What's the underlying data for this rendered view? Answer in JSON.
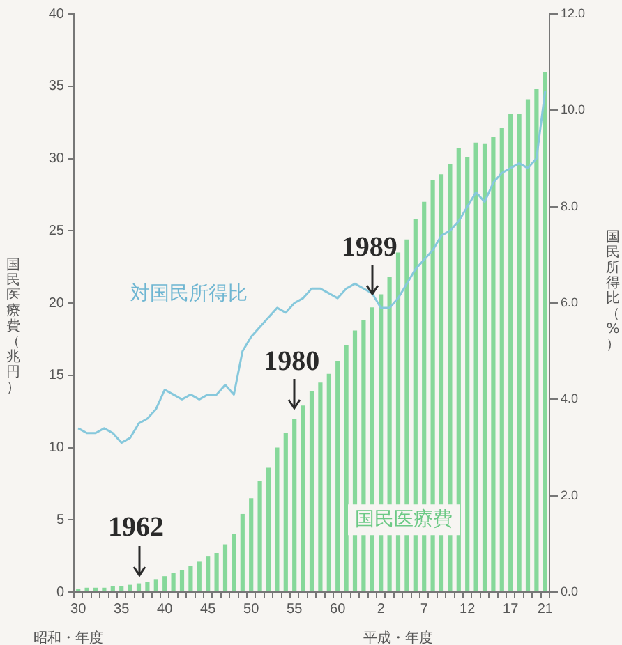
{
  "chart_data": {
    "type": "bar",
    "categories": [
      "30",
      null,
      null,
      null,
      null,
      "35",
      null,
      null,
      null,
      null,
      "40",
      null,
      null,
      null,
      null,
      "45",
      null,
      null,
      null,
      null,
      "50",
      null,
      null,
      null,
      null,
      "55",
      null,
      null,
      null,
      null,
      "60",
      null,
      null,
      null,
      null,
      "2",
      null,
      null,
      null,
      null,
      "7",
      null,
      null,
      null,
      null,
      "12",
      null,
      null,
      null,
      null,
      "17",
      null,
      null,
      null,
      "21"
    ],
    "series": [
      {
        "name": "国民医療費",
        "color": "#86d89a",
        "values": [
          0.2,
          0.3,
          0.3,
          0.3,
          0.4,
          0.4,
          0.5,
          0.6,
          0.7,
          0.9,
          1.1,
          1.3,
          1.5,
          1.8,
          2.1,
          2.5,
          2.7,
          3.3,
          4.0,
          5.4,
          6.5,
          7.7,
          8.6,
          10.0,
          11.0,
          12.0,
          12.9,
          13.9,
          14.5,
          15.1,
          16.0,
          17.1,
          18.1,
          18.8,
          19.7,
          20.6,
          21.8,
          23.5,
          24.4,
          25.8,
          27.0,
          28.5,
          28.9,
          29.6,
          30.7,
          30.1,
          31.1,
          31.0,
          31.5,
          32.1,
          33.1,
          33.1,
          34.1,
          34.8,
          36.0
        ]
      },
      {
        "name": "対国民所得比",
        "type": "line",
        "axis": "y2",
        "color": "#86c8dc",
        "values": [
          3.4,
          3.3,
          3.3,
          3.4,
          3.3,
          3.1,
          3.2,
          3.5,
          3.6,
          3.8,
          4.2,
          4.1,
          4.0,
          4.1,
          4.0,
          4.1,
          4.1,
          4.3,
          4.1,
          5.0,
          5.3,
          5.5,
          5.7,
          5.9,
          5.8,
          6.0,
          6.1,
          6.3,
          6.3,
          6.2,
          6.1,
          6.3,
          6.4,
          6.3,
          6.2,
          5.9,
          5.9,
          6.1,
          6.4,
          6.7,
          6.9,
          7.1,
          7.4,
          7.5,
          7.7,
          8.0,
          8.3,
          8.1,
          8.5,
          8.7,
          8.8,
          8.9,
          8.8,
          9.0,
          10.4
        ]
      }
    ],
    "ylabel": "国民医療費（兆円）",
    "y2label": "国民所得比（%）",
    "xlabel": "昭和・年度",
    "annotations": [
      "1962",
      "1980",
      "1989",
      "平成・年度"
    ],
    "ylim": [
      0,
      40
    ],
    "yticks": [
      0,
      5,
      10,
      15,
      20,
      25,
      30,
      35,
      40
    ],
    "y2lim": [
      0,
      12
    ],
    "y2ticks": [
      {
        "value": 0,
        "label": "0.0"
      },
      {
        "value": 2,
        "label": "2.0"
      },
      {
        "value": 4,
        "label": "4.0"
      },
      {
        "value": 6,
        "label": "6.0"
      },
      {
        "value": 8,
        "label": "8.0"
      },
      {
        "value": 10,
        "label": "10.0"
      },
      {
        "value": 12,
        "label": "12.0"
      }
    ],
    "grid": false,
    "legend": false,
    "marker": "none",
    "line_style": "solid"
  }
}
